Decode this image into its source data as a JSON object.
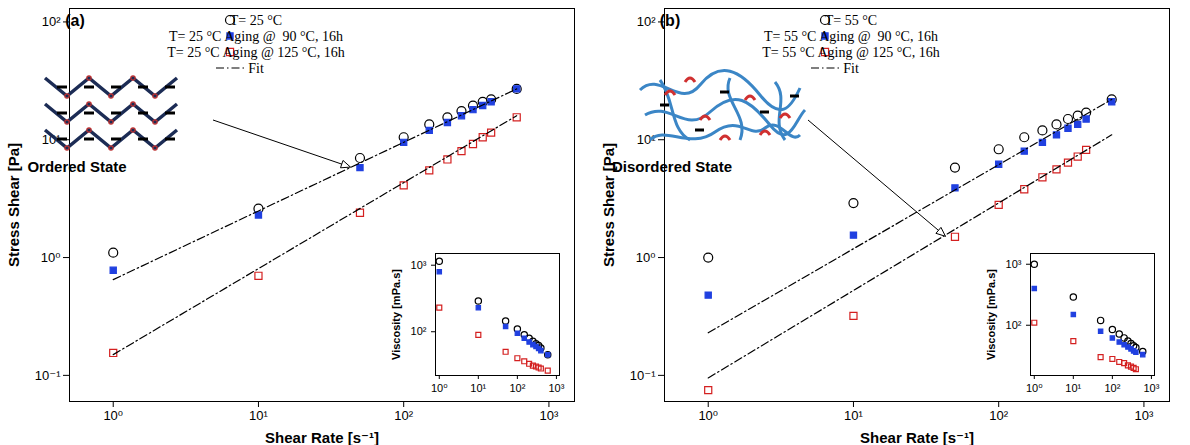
{
  "chart_data": [
    {
      "type": "scatter",
      "title": "(a)",
      "x_label": "Shear Rate [s⁻¹]",
      "y_label": "Stress Shear [Pa]",
      "annotations": [
        "Ordered State"
      ],
      "log": true,
      "grid": false,
      "legend": "top",
      "xlim": [
        0.5,
        1500
      ],
      "ylim": [
        0.06,
        130
      ],
      "xticks": [
        {
          "value": 1,
          "label": "10⁰"
        },
        {
          "value": 10,
          "label": "10¹"
        },
        {
          "value": 100,
          "label": "10²"
        },
        {
          "value": 1000,
          "label": "10³"
        }
      ],
      "yticks": [
        {
          "value": 0.1,
          "label": "10⁻¹"
        },
        {
          "value": 1,
          "label": "10⁰"
        },
        {
          "value": 10,
          "label": "10¹"
        },
        {
          "value": 100,
          "label": "10²"
        }
      ],
      "x": [
        1,
        10,
        50,
        100,
        150,
        200,
        250,
        300,
        350,
        400,
        600
      ],
      "series": [
        {
          "name": "T= 25 °C",
          "color": "#000000",
          "marker": "circle-open",
          "values": [
            1.1,
            2.6,
            7.0,
            10.5,
            13.5,
            15.5,
            17.5,
            19.5,
            21,
            22,
            27
          ]
        },
        {
          "name": "T= 25 °C Aging @  90 °C, 16h",
          "color": "#2040e0",
          "marker": "square-filled",
          "values": [
            0.78,
            2.3,
            5.8,
            9.5,
            12,
            14,
            16,
            18,
            19.5,
            21,
            27
          ]
        },
        {
          "name": "T= 25 °C Aging @ 125 °C, 16h",
          "color": "#d42020",
          "marker": "square-open",
          "values": [
            0.155,
            0.7,
            2.4,
            4.1,
            5.5,
            6.8,
            8,
            9.2,
            10.5,
            11.5,
            15.5
          ]
        },
        {
          "name": "Fit",
          "type": "line",
          "color": "#000000",
          "line_style": "dashdot",
          "x": [
            1,
            600,
            null,
            1,
            600
          ],
          "values": [
            0.65,
            27,
            null,
            0.15,
            16
          ]
        }
      ],
      "inset": {
        "type": "scatter",
        "y_label": "Viscosity [mPa.s]",
        "log": true,
        "grid": false,
        "xlim": [
          0.8,
          1200
        ],
        "ylim": [
          22,
          1500
        ],
        "xticks": [
          {
            "value": 1,
            "label": "10⁰"
          },
          {
            "value": 10,
            "label": "10¹"
          },
          {
            "value": 100,
            "label": "10²"
          },
          {
            "value": 1000,
            "label": "10³"
          }
        ],
        "yticks": [
          {
            "value": 100,
            "label": "10²"
          },
          {
            "value": 1000,
            "label": "10³"
          }
        ],
        "x": [
          1,
          10,
          50,
          100,
          150,
          200,
          250,
          300,
          350,
          400,
          600
        ],
        "series": [
          {
            "color": "#000000",
            "marker": "circle-open",
            "values": [
              1150,
              290,
              145,
              110,
              90,
              80,
              72,
              66,
              62,
              57,
              45
            ]
          },
          {
            "color": "#2040e0",
            "marker": "square-filled",
            "values": [
              800,
              230,
              120,
              95,
              80,
              70,
              64,
              60,
              56,
              52,
              45
            ]
          },
          {
            "color": "#d42020",
            "marker": "square-open",
            "values": [
              230,
              90,
              50,
              40,
              36,
              33,
              31,
              30,
              29,
              28,
              26
            ]
          }
        ]
      }
    },
    {
      "type": "scatter",
      "title": "(b)",
      "x_label": "Shear Rate [s⁻¹]",
      "y_label": "Stress Shear [Pa]",
      "annotations": [
        "Disordered State"
      ],
      "log": true,
      "grid": false,
      "legend": "top",
      "xlim": [
        0.5,
        1500
      ],
      "ylim": [
        0.06,
        130
      ],
      "xticks": [
        {
          "value": 1,
          "label": "10⁰"
        },
        {
          "value": 10,
          "label": "10¹"
        },
        {
          "value": 100,
          "label": "10²"
        },
        {
          "value": 1000,
          "label": "10³"
        }
      ],
      "yticks": [
        {
          "value": 0.1,
          "label": "10⁻¹"
        },
        {
          "value": 1,
          "label": "10⁰"
        },
        {
          "value": 10,
          "label": "10¹"
        },
        {
          "value": 100,
          "label": "10²"
        }
      ],
      "x": [
        1,
        10,
        50,
        100,
        150,
        200,
        250,
        300,
        350,
        400,
        600
      ],
      "series": [
        {
          "name": "T= 55 °C",
          "color": "#000000",
          "marker": "circle-open",
          "values": [
            1.0,
            2.9,
            5.8,
            8.3,
            10.5,
            12,
            13.5,
            15,
            16,
            17,
            22
          ]
        },
        {
          "name": "T= 55 °C Aging @  90 °C, 16h",
          "color": "#2040e0",
          "marker": "square-filled",
          "values": [
            0.48,
            1.55,
            3.9,
            6.2,
            8,
            9.5,
            11,
            12.5,
            13.5,
            15,
            21
          ]
        },
        {
          "name": "T= 55 °C Aging @ 125 °C, 16h",
          "color": "#d42020",
          "marker": "square-open",
          "values": [
            0.075,
            0.32,
            1.5,
            2.8,
            3.8,
            4.8,
            5.6,
            6.4,
            7.2,
            8.2,
            null
          ]
        },
        {
          "name": "Fit",
          "type": "line",
          "color": "#000000",
          "line_style": "dashdot",
          "x": [
            1,
            600,
            null,
            1,
            600
          ],
          "values": [
            0.23,
            22,
            null,
            0.095,
            11
          ]
        }
      ],
      "inset": {
        "type": "scatter",
        "y_label": "Viscosity [mPa.s]",
        "log": true,
        "grid": false,
        "xlim": [
          0.8,
          1200
        ],
        "ylim": [
          15,
          1500
        ],
        "xticks": [
          {
            "value": 1,
            "label": "10⁰"
          },
          {
            "value": 10,
            "label": "10¹"
          },
          {
            "value": 100,
            "label": "10²"
          },
          {
            "value": 1000,
            "label": "10³"
          }
        ],
        "yticks": [
          {
            "value": 100,
            "label": "10²"
          },
          {
            "value": 1000,
            "label": "10³"
          }
        ],
        "x": [
          1,
          10,
          50,
          100,
          150,
          200,
          250,
          300,
          350,
          400,
          600
        ],
        "series": [
          {
            "color": "#000000",
            "marker": "circle-open",
            "values": [
              1000,
              290,
              120,
              85,
              72,
              62,
              55,
              50,
              46,
              43,
              37
            ]
          },
          {
            "color": "#2040e0",
            "marker": "square-filled",
            "values": [
              400,
              150,
              80,
              62,
              53,
              48,
              44,
              41,
              38,
              36,
              33
            ]
          },
          {
            "color": "#d42020",
            "marker": "square-open",
            "values": [
              110,
              55,
              30,
              28,
              25,
              24,
              22,
              21,
              20,
              19,
              null
            ]
          }
        ]
      }
    }
  ]
}
